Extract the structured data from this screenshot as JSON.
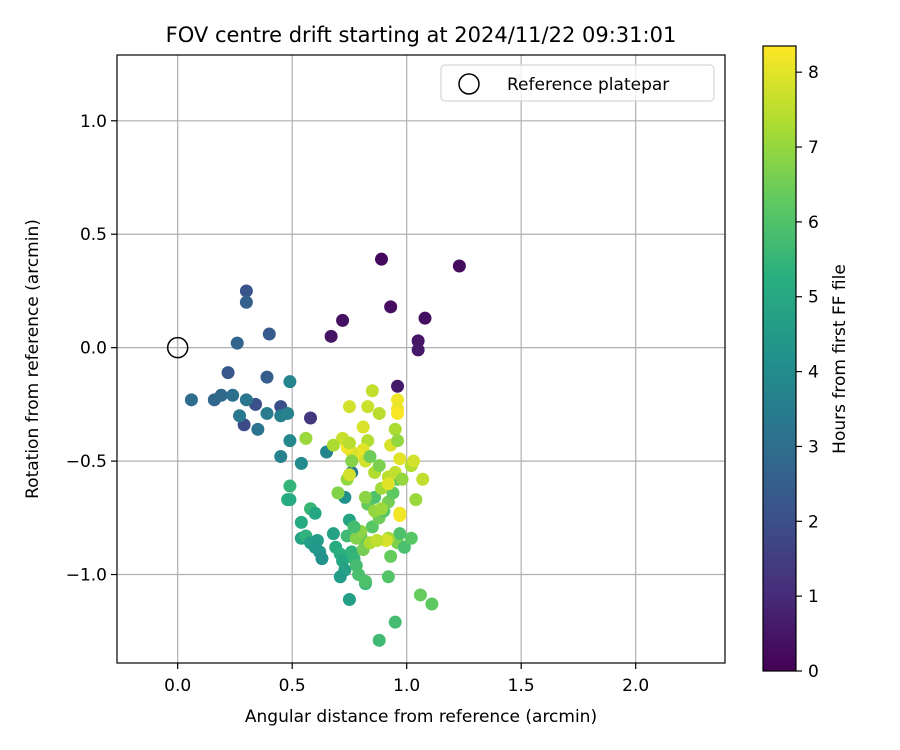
{
  "chart_data": {
    "type": "scatter",
    "title": "FOV centre drift starting at 2024/11/22 09:31:01",
    "xlabel": "Angular distance from reference (arcmin)",
    "ylabel": "Rotation from reference (arcmin)",
    "xlim": [
      -0.265,
      2.39
    ],
    "ylim": [
      -1.39,
      1.29
    ],
    "x_ticks": [
      0.0,
      0.5,
      1.0,
      1.5,
      2.0
    ],
    "x_tick_labels": [
      "0.0",
      "0.5",
      "1.0",
      "1.5",
      "2.0"
    ],
    "y_ticks": [
      -1.0,
      -0.5,
      0.0,
      0.5,
      1.0
    ],
    "y_tick_labels": [
      "−1.0",
      "−0.5",
      "0.0",
      "0.5",
      "1.0"
    ],
    "grid": true,
    "legend": {
      "placement": "top-right",
      "entries": [
        "Reference platepar"
      ]
    },
    "colorbar": {
      "label": "Hours from first FF file",
      "colormap": "viridis",
      "range": [
        0,
        8.35
      ],
      "ticks": [
        0,
        1,
        2,
        3,
        4,
        5,
        6,
        7,
        8
      ],
      "tick_labels": [
        "0",
        "1",
        "2",
        "3",
        "4",
        "5",
        "6",
        "7",
        "8"
      ]
    },
    "reference_point": {
      "x": 0.0,
      "y": 0.0
    },
    "points": [
      {
        "x": 0.89,
        "y": 0.39,
        "c": 0.2
      },
      {
        "x": 1.23,
        "y": 0.36,
        "c": 0.25
      },
      {
        "x": 0.93,
        "y": 0.18,
        "c": 0.3
      },
      {
        "x": 1.08,
        "y": 0.13,
        "c": 0.35
      },
      {
        "x": 0.72,
        "y": 0.12,
        "c": 0.4
      },
      {
        "x": 0.67,
        "y": 0.05,
        "c": 0.45
      },
      {
        "x": 1.05,
        "y": 0.03,
        "c": 0.5
      },
      {
        "x": 1.05,
        "y": -0.01,
        "c": 0.55
      },
      {
        "x": 0.96,
        "y": -0.17,
        "c": 0.6
      },
      {
        "x": 0.58,
        "y": -0.31,
        "c": 1.4
      },
      {
        "x": 0.3,
        "y": 0.25,
        "c": 2.2
      },
      {
        "x": 0.3,
        "y": 0.2,
        "c": 2.6
      },
      {
        "x": 0.4,
        "y": 0.06,
        "c": 2.4
      },
      {
        "x": 0.26,
        "y": 0.02,
        "c": 2.7
      },
      {
        "x": 0.22,
        "y": -0.11,
        "c": 2.3
      },
      {
        "x": 0.39,
        "y": -0.13,
        "c": 2.5
      },
      {
        "x": 0.34,
        "y": -0.25,
        "c": 2.1
      },
      {
        "x": 0.45,
        "y": -0.26,
        "c": 2.0
      },
      {
        "x": 0.29,
        "y": -0.34,
        "c": 1.9
      },
      {
        "x": 0.06,
        "y": -0.23,
        "c": 3.0
      },
      {
        "x": 0.16,
        "y": -0.23,
        "c": 2.8
      },
      {
        "x": 0.19,
        "y": -0.21,
        "c": 2.9
      },
      {
        "x": 0.24,
        "y": -0.21,
        "c": 3.1
      },
      {
        "x": 0.3,
        "y": -0.23,
        "c": 3.3
      },
      {
        "x": 0.27,
        "y": -0.3,
        "c": 3.4
      },
      {
        "x": 0.35,
        "y": -0.36,
        "c": 3.2
      },
      {
        "x": 0.39,
        "y": -0.29,
        "c": 3.5
      },
      {
        "x": 0.45,
        "y": -0.3,
        "c": 3.6
      },
      {
        "x": 0.48,
        "y": -0.29,
        "c": 3.7
      },
      {
        "x": 0.49,
        "y": -0.15,
        "c": 3.8
      },
      {
        "x": 0.49,
        "y": -0.41,
        "c": 3.9
      },
      {
        "x": 0.45,
        "y": -0.48,
        "c": 3.7
      },
      {
        "x": 0.54,
        "y": -0.51,
        "c": 4.0
      },
      {
        "x": 0.65,
        "y": -0.46,
        "c": 3.8
      },
      {
        "x": 0.76,
        "y": -0.55,
        "c": 3.5
      },
      {
        "x": 0.73,
        "y": -0.66,
        "c": 4.2
      },
      {
        "x": 0.49,
        "y": -0.61,
        "c": 5.5
      },
      {
        "x": 0.48,
        "y": -0.67,
        "c": 5.3
      },
      {
        "x": 0.49,
        "y": -0.67,
        "c": 5.1
      },
      {
        "x": 0.54,
        "y": -0.77,
        "c": 5.2
      },
      {
        "x": 0.58,
        "y": -0.71,
        "c": 5.6
      },
      {
        "x": 0.6,
        "y": -0.73,
        "c": 5.0
      },
      {
        "x": 0.54,
        "y": -0.84,
        "c": 4.9
      },
      {
        "x": 0.56,
        "y": -0.83,
        "c": 5.4
      },
      {
        "x": 0.58,
        "y": -0.86,
        "c": 4.7
      },
      {
        "x": 0.61,
        "y": -0.85,
        "c": 4.6
      },
      {
        "x": 0.6,
        "y": -0.88,
        "c": 4.5
      },
      {
        "x": 0.62,
        "y": -0.9,
        "c": 4.4
      },
      {
        "x": 0.63,
        "y": -0.93,
        "c": 4.3
      },
      {
        "x": 0.68,
        "y": -0.82,
        "c": 4.8
      },
      {
        "x": 0.69,
        "y": -0.88,
        "c": 5.2
      },
      {
        "x": 0.71,
        "y": -0.91,
        "c": 5.3
      },
      {
        "x": 0.72,
        "y": -0.94,
        "c": 5.0
      },
      {
        "x": 0.74,
        "y": -0.83,
        "c": 5.7
      },
      {
        "x": 0.75,
        "y": -0.76,
        "c": 4.9
      },
      {
        "x": 0.76,
        "y": -0.9,
        "c": 5.4
      },
      {
        "x": 0.77,
        "y": -0.93,
        "c": 5.5
      },
      {
        "x": 0.73,
        "y": -0.98,
        "c": 4.8
      },
      {
        "x": 0.71,
        "y": -1.01,
        "c": 4.6
      },
      {
        "x": 0.75,
        "y": -1.11,
        "c": 4.7
      },
      {
        "x": 0.78,
        "y": -0.96,
        "c": 5.8
      },
      {
        "x": 0.79,
        "y": -1.0,
        "c": 5.9
      },
      {
        "x": 0.82,
        "y": -1.04,
        "c": 5.6
      },
      {
        "x": 0.82,
        "y": -1.03,
        "c": 6.0
      },
      {
        "x": 0.8,
        "y": -0.83,
        "c": 6.1
      },
      {
        "x": 0.82,
        "y": -0.86,
        "c": 6.3
      },
      {
        "x": 0.85,
        "y": -0.79,
        "c": 6.2
      },
      {
        "x": 0.83,
        "y": -0.69,
        "c": 6.4
      },
      {
        "x": 0.86,
        "y": -0.66,
        "c": 6.0
      },
      {
        "x": 0.88,
        "y": -0.75,
        "c": 6.5
      },
      {
        "x": 0.9,
        "y": -0.72,
        "c": 6.1
      },
      {
        "x": 0.92,
        "y": -0.68,
        "c": 6.6
      },
      {
        "x": 0.94,
        "y": -0.64,
        "c": 6.3
      },
      {
        "x": 0.96,
        "y": -0.58,
        "c": 6.2
      },
      {
        "x": 0.93,
        "y": -0.92,
        "c": 6.4
      },
      {
        "x": 0.96,
        "y": -0.86,
        "c": 6.7
      },
      {
        "x": 0.99,
        "y": -0.88,
        "c": 5.9
      },
      {
        "x": 1.02,
        "y": -0.84,
        "c": 6.2
      },
      {
        "x": 0.97,
        "y": -0.82,
        "c": 6.0
      },
      {
        "x": 0.92,
        "y": -1.01,
        "c": 6.1
      },
      {
        "x": 0.95,
        "y": -1.21,
        "c": 5.8
      },
      {
        "x": 0.88,
        "y": -1.29,
        "c": 5.7
      },
      {
        "x": 1.06,
        "y": -1.09,
        "c": 6.4
      },
      {
        "x": 1.11,
        "y": -1.13,
        "c": 6.3
      },
      {
        "x": 0.81,
        "y": -0.89,
        "c": 6.6
      },
      {
        "x": 0.78,
        "y": -0.84,
        "c": 6.8
      },
      {
        "x": 0.8,
        "y": -0.81,
        "c": 6.9
      },
      {
        "x": 0.86,
        "y": -0.72,
        "c": 7.0
      },
      {
        "x": 0.89,
        "y": -0.71,
        "c": 7.1
      },
      {
        "x": 0.92,
        "y": -0.84,
        "c": 7.2
      },
      {
        "x": 0.84,
        "y": -0.86,
        "c": 7.3
      },
      {
        "x": 0.7,
        "y": -0.64,
        "c": 6.8
      },
      {
        "x": 0.74,
        "y": -0.58,
        "c": 7.0
      },
      {
        "x": 0.82,
        "y": -0.66,
        "c": 6.9
      },
      {
        "x": 0.86,
        "y": -0.55,
        "c": 7.4
      },
      {
        "x": 0.89,
        "y": -0.62,
        "c": 7.2
      },
      {
        "x": 0.92,
        "y": -0.57,
        "c": 7.5
      },
      {
        "x": 0.95,
        "y": -0.55,
        "c": 7.6
      },
      {
        "x": 0.98,
        "y": -0.58,
        "c": 7.0
      },
      {
        "x": 1.02,
        "y": -0.52,
        "c": 7.4
      },
      {
        "x": 1.04,
        "y": -0.67,
        "c": 7.1
      },
      {
        "x": 1.07,
        "y": -0.58,
        "c": 7.6
      },
      {
        "x": 1.03,
        "y": -0.5,
        "c": 7.8
      },
      {
        "x": 0.97,
        "y": -0.49,
        "c": 8.0
      },
      {
        "x": 0.93,
        "y": -0.43,
        "c": 7.9
      },
      {
        "x": 0.95,
        "y": -0.36,
        "c": 7.3
      },
      {
        "x": 0.96,
        "y": -0.41,
        "c": 7.0
      },
      {
        "x": 0.88,
        "y": -0.29,
        "c": 7.5
      },
      {
        "x": 0.83,
        "y": -0.26,
        "c": 7.7
      },
      {
        "x": 0.75,
        "y": -0.26,
        "c": 7.8
      },
      {
        "x": 0.85,
        "y": -0.19,
        "c": 7.6
      },
      {
        "x": 0.96,
        "y": -0.23,
        "c": 8.2
      },
      {
        "x": 0.96,
        "y": -0.27,
        "c": 8.1
      },
      {
        "x": 0.96,
        "y": -0.29,
        "c": 8.3
      },
      {
        "x": 0.81,
        "y": -0.35,
        "c": 7.9
      },
      {
        "x": 0.83,
        "y": -0.41,
        "c": 7.4
      },
      {
        "x": 0.81,
        "y": -0.45,
        "c": 8.0
      },
      {
        "x": 0.79,
        "y": -0.47,
        "c": 8.1
      },
      {
        "x": 0.76,
        "y": -0.46,
        "c": 7.9
      },
      {
        "x": 0.74,
        "y": -0.44,
        "c": 8.2
      },
      {
        "x": 0.72,
        "y": -0.4,
        "c": 7.7
      },
      {
        "x": 0.75,
        "y": -0.42,
        "c": 7.5
      },
      {
        "x": 0.68,
        "y": -0.43,
        "c": 7.3
      },
      {
        "x": 0.56,
        "y": -0.4,
        "c": 7.1
      },
      {
        "x": 0.76,
        "y": -0.5,
        "c": 6.8
      },
      {
        "x": 0.82,
        "y": -0.5,
        "c": 7.8
      },
      {
        "x": 0.84,
        "y": -0.48,
        "c": 6.5
      },
      {
        "x": 0.88,
        "y": -0.52,
        "c": 6.7
      },
      {
        "x": 0.92,
        "y": -0.6,
        "c": 8.0
      },
      {
        "x": 0.97,
        "y": -0.74,
        "c": 8.3
      },
      {
        "x": 0.97,
        "y": -0.73,
        "c": 8.2
      },
      {
        "x": 0.91,
        "y": -0.85,
        "c": 7.9
      },
      {
        "x": 0.87,
        "y": -0.85,
        "c": 7.6
      },
      {
        "x": 0.75,
        "y": -0.56,
        "c": 7.8
      },
      {
        "x": 0.77,
        "y": -0.79,
        "c": 5.8
      }
    ]
  }
}
